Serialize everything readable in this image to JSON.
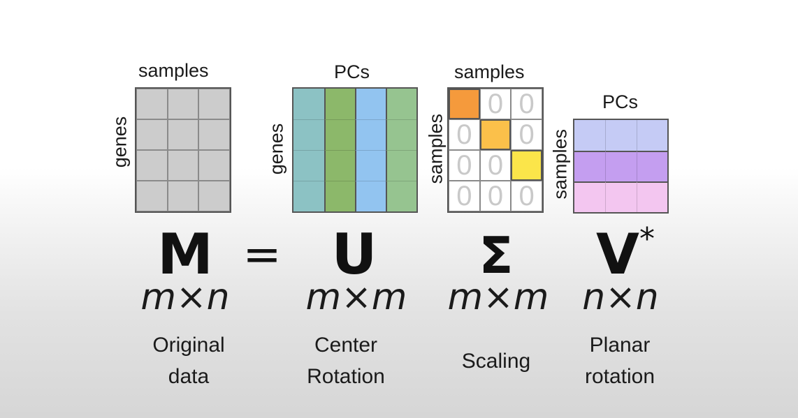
{
  "matrices": {
    "m": {
      "col_label": "samples",
      "row_label": "genes",
      "symbol": "M",
      "dims": "m×n",
      "desc_line1": "Original",
      "desc_line2": "data",
      "color": "#cccccc"
    },
    "u": {
      "col_label": "PCs",
      "row_label": "genes",
      "symbol": "U",
      "dims": "m×m",
      "desc_line1": "Center",
      "desc_line2": "Rotation",
      "column_colors": [
        "#8cc2c4",
        "#8cb86a",
        "#92c4f0",
        "#96c490"
      ]
    },
    "sigma": {
      "col_label": "samples",
      "row_label": "samples",
      "symbol": "Σ",
      "dims": "m×m",
      "desc": "Scaling",
      "zero": "0",
      "diagonal_colors": [
        "#f59a3c",
        "#fbc04a",
        "#fbe54a"
      ]
    },
    "v": {
      "col_label": "PCs",
      "row_label": "samples",
      "symbol": "V",
      "superscript": "*",
      "dims": "n×n",
      "desc_line1": "Planar",
      "desc_line2": "rotation",
      "row_colors": [
        "#c5cbf5",
        "#c49ef0",
        "#f3c6f0"
      ]
    }
  },
  "equals": "="
}
